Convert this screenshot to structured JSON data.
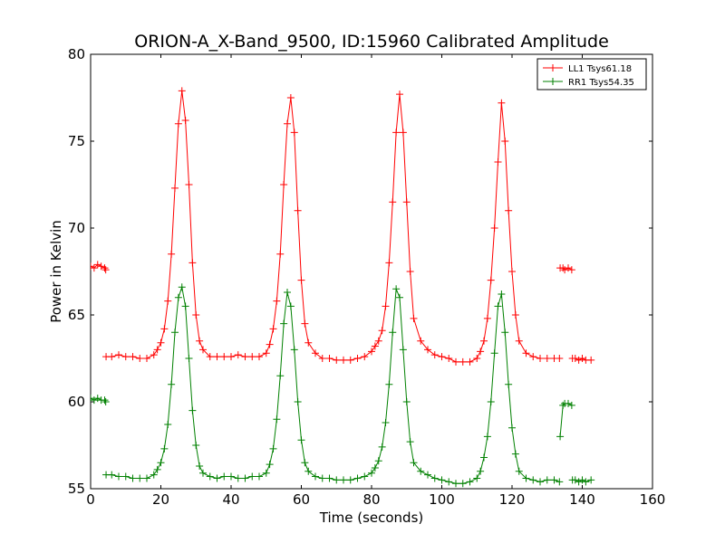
{
  "chart_data": {
    "type": "line",
    "title": "ORION-A_X-Band_9500, ID:15960 Calibrated Amplitude",
    "xlabel": "Time (seconds)",
    "ylabel": "Power in Kelvin",
    "xlim": [
      0,
      160
    ],
    "ylim": [
      55,
      80
    ],
    "xticks": [
      0,
      20,
      40,
      60,
      80,
      100,
      120,
      140,
      160
    ],
    "yticks": [
      55,
      60,
      65,
      70,
      75,
      80
    ],
    "grid": false,
    "legend_position": "top-right",
    "marker": "plus",
    "series": [
      {
        "name": "LL1 Tsys61.18",
        "color": "#ff0000",
        "segments": [
          {
            "x": [
              0,
              1,
              2,
              3,
              4,
              4.3
            ],
            "y": [
              67.8,
              67.7,
              67.9,
              67.8,
              67.7,
              67.6
            ]
          },
          {
            "x": [
              4.4,
              6,
              8,
              10,
              12,
              14,
              16,
              18,
              19,
              20,
              21,
              22,
              23,
              24,
              25,
              26,
              27,
              28,
              29,
              30,
              31,
              32,
              34,
              36,
              38,
              40,
              42,
              44,
              46,
              48,
              50,
              51,
              52,
              53,
              54,
              55,
              56,
              57,
              58,
              59,
              60,
              61,
              62,
              64,
              66,
              68,
              70,
              72,
              74,
              76,
              78,
              80,
              81,
              82,
              83,
              84,
              85,
              86,
              87,
              88,
              89,
              90,
              91,
              92,
              94,
              96,
              98,
              100,
              102,
              104,
              106,
              108,
              110,
              111,
              112,
              113,
              114,
              115,
              116,
              117,
              118,
              119,
              120,
              121,
              122,
              124,
              126,
              128,
              130,
              132,
              133.5
            ],
            "y": [
              62.6,
              62.6,
              62.7,
              62.6,
              62.6,
              62.5,
              62.5,
              62.7,
              63.0,
              63.4,
              64.2,
              65.8,
              68.5,
              72.3,
              76.0,
              77.9,
              76.2,
              72.5,
              68.0,
              65.0,
              63.5,
              63.0,
              62.6,
              62.6,
              62.6,
              62.6,
              62.7,
              62.6,
              62.6,
              62.6,
              62.8,
              63.3,
              64.2,
              65.8,
              68.5,
              72.5,
              76.0,
              77.5,
              75.5,
              71.0,
              67.0,
              64.5,
              63.4,
              62.8,
              62.5,
              62.5,
              62.4,
              62.4,
              62.4,
              62.5,
              62.6,
              62.9,
              63.2,
              63.5,
              64.1,
              65.5,
              68.0,
              71.5,
              75.5,
              77.7,
              75.5,
              71.5,
              67.5,
              64.8,
              63.5,
              63.0,
              62.7,
              62.6,
              62.5,
              62.3,
              62.3,
              62.3,
              62.5,
              62.9,
              63.5,
              64.8,
              67.0,
              70.0,
              73.8,
              77.2,
              75.0,
              71.0,
              67.5,
              65.0,
              63.5,
              62.8,
              62.6,
              62.5,
              62.5,
              62.5,
              62.5
            ]
          },
          {
            "x": [
              133.7,
              134.5,
              135,
              136,
              137
            ],
            "y": [
              67.7,
              67.7,
              67.6,
              67.7,
              67.6
            ]
          },
          {
            "x": [
              137.2,
              138,
              139,
              140,
              141,
              142.5
            ],
            "y": [
              62.5,
              62.5,
              62.4,
              62.5,
              62.4,
              62.4
            ]
          }
        ]
      },
      {
        "name": "RR1 Tsys54.35",
        "color": "#008000",
        "segments": [
          {
            "x": [
              0,
              1,
              2,
              3,
              4,
              4.3
            ],
            "y": [
              60.2,
              60.1,
              60.2,
              60.1,
              60.1,
              60.0
            ]
          },
          {
            "x": [
              4.4,
              6,
              8,
              10,
              12,
              14,
              16,
              18,
              19,
              20,
              21,
              22,
              23,
              24,
              25,
              26,
              27,
              28,
              29,
              30,
              31,
              32,
              34,
              36,
              38,
              40,
              42,
              44,
              46,
              48,
              50,
              51,
              52,
              53,
              54,
              55,
              56,
              57,
              58,
              59,
              60,
              61,
              62,
              64,
              66,
              68,
              70,
              72,
              74,
              76,
              78,
              80,
              81,
              82,
              83,
              84,
              85,
              86,
              87,
              88,
              89,
              90,
              91,
              92,
              94,
              96,
              98,
              100,
              102,
              104,
              106,
              108,
              110,
              111,
              112,
              113,
              114,
              115,
              116,
              117,
              118,
              119,
              120,
              121,
              122,
              124,
              126,
              128,
              130,
              132,
              133.5
            ],
            "y": [
              55.8,
              55.8,
              55.7,
              55.7,
              55.6,
              55.6,
              55.6,
              55.8,
              56.1,
              56.5,
              57.3,
              58.7,
              61.0,
              64.0,
              66.0,
              66.6,
              65.5,
              62.5,
              59.5,
              57.5,
              56.3,
              55.9,
              55.7,
              55.6,
              55.7,
              55.7,
              55.6,
              55.6,
              55.7,
              55.7,
              55.9,
              56.4,
              57.3,
              59.0,
              61.5,
              64.5,
              66.3,
              65.5,
              63.0,
              60.0,
              57.8,
              56.5,
              56.0,
              55.7,
              55.6,
              55.6,
              55.5,
              55.5,
              55.5,
              55.6,
              55.7,
              55.9,
              56.2,
              56.6,
              57.4,
              58.8,
              61.0,
              64.0,
              66.5,
              66.0,
              63.0,
              60.0,
              57.7,
              56.5,
              56.0,
              55.8,
              55.6,
              55.5,
              55.4,
              55.3,
              55.3,
              55.4,
              55.6,
              56.0,
              56.8,
              58.0,
              60.0,
              62.8,
              65.5,
              66.2,
              64.0,
              61.0,
              58.5,
              57.0,
              56.0,
              55.6,
              55.5,
              55.4,
              55.5,
              55.5,
              55.4
            ]
          },
          {
            "x": [
              133.7,
              134.5,
              135,
              136,
              137
            ],
            "y": [
              58.0,
              59.8,
              59.9,
              59.9,
              59.8
            ]
          },
          {
            "x": [
              137.2,
              138,
              139,
              140,
              141,
              142.5
            ],
            "y": [
              55.5,
              55.5,
              55.4,
              55.5,
              55.4,
              55.5
            ]
          }
        ]
      }
    ]
  }
}
